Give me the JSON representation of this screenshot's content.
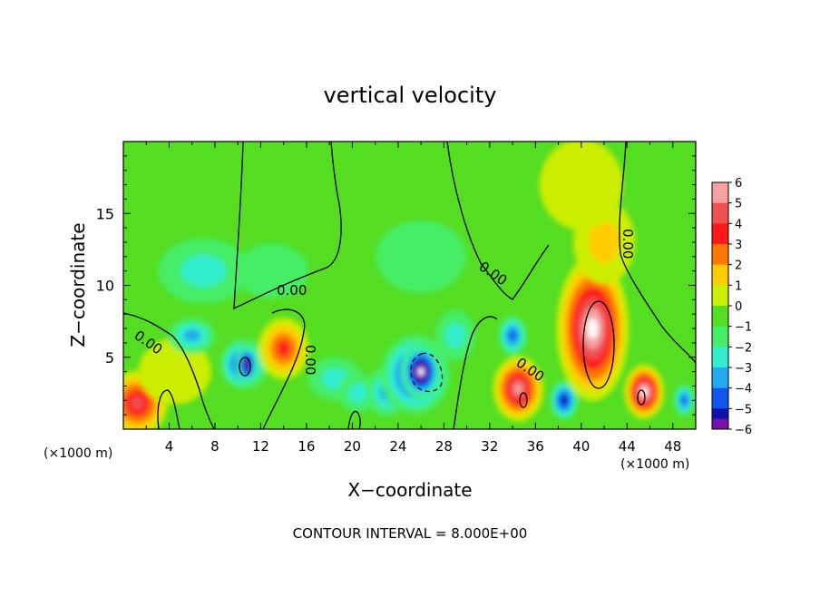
{
  "chart_data": {
    "type": "heatmap",
    "title": "vertical velocity",
    "xlabel": "X−coordinate",
    "ylabel": "Z−coordinate",
    "x_unit_left": "(×1000 m)",
    "x_unit_right": "(×1000 m)",
    "xlim": [
      0,
      50
    ],
    "ylim": [
      0,
      20
    ],
    "xticks": [
      4,
      8,
      12,
      16,
      20,
      24,
      28,
      32,
      36,
      40,
      44,
      48
    ],
    "yticks": [
      5,
      10,
      15
    ],
    "contour_label": "0.00",
    "footer": "CONTOUR INTERVAL = 8.000E+00",
    "colorbar": {
      "labels": [
        "6",
        "5",
        "4",
        "3",
        "2",
        "1",
        "0",
        "−1",
        "−2",
        "−3",
        "−4",
        "−5",
        "−6"
      ],
      "colors": [
        "#f6a0a0",
        "#f05050",
        "#ff1a1a",
        "#ff7700",
        "#ffcc00",
        "#ccee00",
        "#55dd22",
        "#44ee66",
        "#33eecc",
        "#22aaee",
        "#1155ee",
        "#1111aa",
        "#7711aa"
      ]
    },
    "background_value": 0.5,
    "features": [
      {
        "x": 1.2,
        "z": 1.8,
        "value": 5
      },
      {
        "x": 4.5,
        "z": 4.0,
        "value": 1
      },
      {
        "x": 6.0,
        "z": 6.5,
        "value": -3
      },
      {
        "x": 10.5,
        "z": 4.5,
        "value": -5
      },
      {
        "x": 10.8,
        "z": 4.5,
        "value": -6
      },
      {
        "x": 14.0,
        "z": 5.6,
        "value": 4
      },
      {
        "x": 18.5,
        "z": 3.5,
        "value": -2
      },
      {
        "x": 20.5,
        "z": 2.5,
        "value": -2
      },
      {
        "x": 23.0,
        "z": 2.6,
        "value": -3
      },
      {
        "x": 25.5,
        "z": 3.8,
        "value": -5
      },
      {
        "x": 26.0,
        "z": 4.0,
        "value": -8
      },
      {
        "x": 29.0,
        "z": 6.5,
        "value": -2
      },
      {
        "x": 34.0,
        "z": 6.5,
        "value": -4
      },
      {
        "x": 34.5,
        "z": 2.8,
        "value": 6
      },
      {
        "x": 38.5,
        "z": 2.0,
        "value": -5
      },
      {
        "x": 41.0,
        "z": 7.0,
        "value": 8
      },
      {
        "x": 42.0,
        "z": 13.0,
        "value": 2
      },
      {
        "x": 40.0,
        "z": 17.0,
        "value": 1
      },
      {
        "x": 45.5,
        "z": 2.6,
        "value": 7
      },
      {
        "x": 49.0,
        "z": 2.0,
        "value": -4
      },
      {
        "x": 7.0,
        "z": 11.0,
        "value": -2
      },
      {
        "x": 13.0,
        "z": 11.0,
        "value": -1
      },
      {
        "x": 26.0,
        "z": 12.0,
        "value": -1
      }
    ]
  }
}
